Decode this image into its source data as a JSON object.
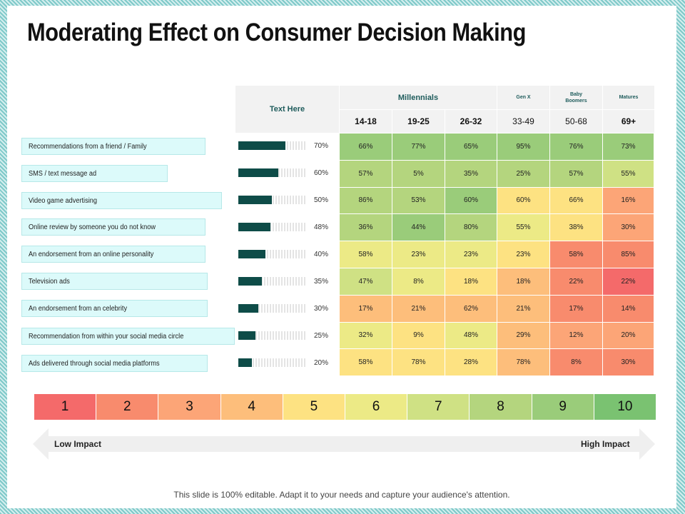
{
  "title": "Moderating Effect on Consumer Decision Making",
  "chart_data": {
    "type": "table",
    "title": "Moderating Effect on Consumer Decision Making",
    "label_header": "Text Here",
    "groups": [
      {
        "name": "Millennials",
        "columns": [
          "14-18",
          "19-25",
          "26-32"
        ]
      },
      {
        "name": "Gen X",
        "columns": [
          "33-49"
        ]
      },
      {
        "name": "Baby Boomers",
        "columns": [
          "50-68"
        ]
      },
      {
        "name": "Matures",
        "columns": [
          "69+"
        ]
      }
    ],
    "rows": [
      {
        "label": "Recommendations from a friend / Family",
        "overall": 70,
        "values": [
          66,
          77,
          65,
          95,
          76,
          73
        ]
      },
      {
        "label": "SMS / text message ad",
        "overall": 60,
        "values": [
          57,
          5,
          35,
          25,
          57,
          55
        ]
      },
      {
        "label": "Video game advertising",
        "overall": 50,
        "values": [
          86,
          53,
          60,
          60,
          66,
          16
        ]
      },
      {
        "label": "Online review by someone you do not know",
        "overall": 48,
        "values": [
          36,
          44,
          80,
          55,
          38,
          30
        ]
      },
      {
        "label": "An endorsement from an online personality",
        "overall": 40,
        "values": [
          58,
          23,
          23,
          23,
          58,
          85
        ]
      },
      {
        "label": "Television ads",
        "overall": 35,
        "values": [
          47,
          8,
          18,
          18,
          22,
          22
        ]
      },
      {
        "label": "An endorsement from an celebrity",
        "overall": 30,
        "values": [
          17,
          21,
          62,
          21,
          17,
          14
        ]
      },
      {
        "label": "Recommendation from within your social media circle",
        "overall": 25,
        "values": [
          32,
          9,
          48,
          29,
          12,
          20
        ]
      },
      {
        "label": "Ads delivered through social media platforms",
        "overall": 20,
        "values": [
          58,
          78,
          28,
          78,
          8,
          30
        ]
      }
    ],
    "cell_scores": [
      [
        9,
        9,
        9,
        9,
        9,
        9
      ],
      [
        8,
        8,
        8,
        8,
        8,
        7
      ],
      [
        8,
        8,
        9,
        5,
        5,
        3
      ],
      [
        8,
        9,
        8,
        6,
        5,
        3
      ],
      [
        6,
        6,
        6,
        5,
        2,
        2
      ],
      [
        7,
        6,
        5,
        4,
        2,
        1
      ],
      [
        4,
        4,
        4,
        4,
        2,
        2
      ],
      [
        6,
        5,
        6,
        4,
        3,
        3
      ],
      [
        5,
        5,
        5,
        4,
        2,
        2
      ]
    ],
    "legend_scale": {
      "values": [
        "1",
        "2",
        "3",
        "4",
        "5",
        "6",
        "7",
        "8",
        "9",
        "10"
      ],
      "low_label": "Low Impact",
      "high_label": "High Impact"
    }
  },
  "scale_colors": [
    "#f46a6a",
    "#f88b6d",
    "#fca577",
    "#fdbe7b",
    "#fde282",
    "#ecea86",
    "#cfe184",
    "#b4d57e",
    "#9acc7a",
    "#7ac271"
  ],
  "footer": "This slide is 100% editable. Adapt it to your needs and capture your audience's attention."
}
